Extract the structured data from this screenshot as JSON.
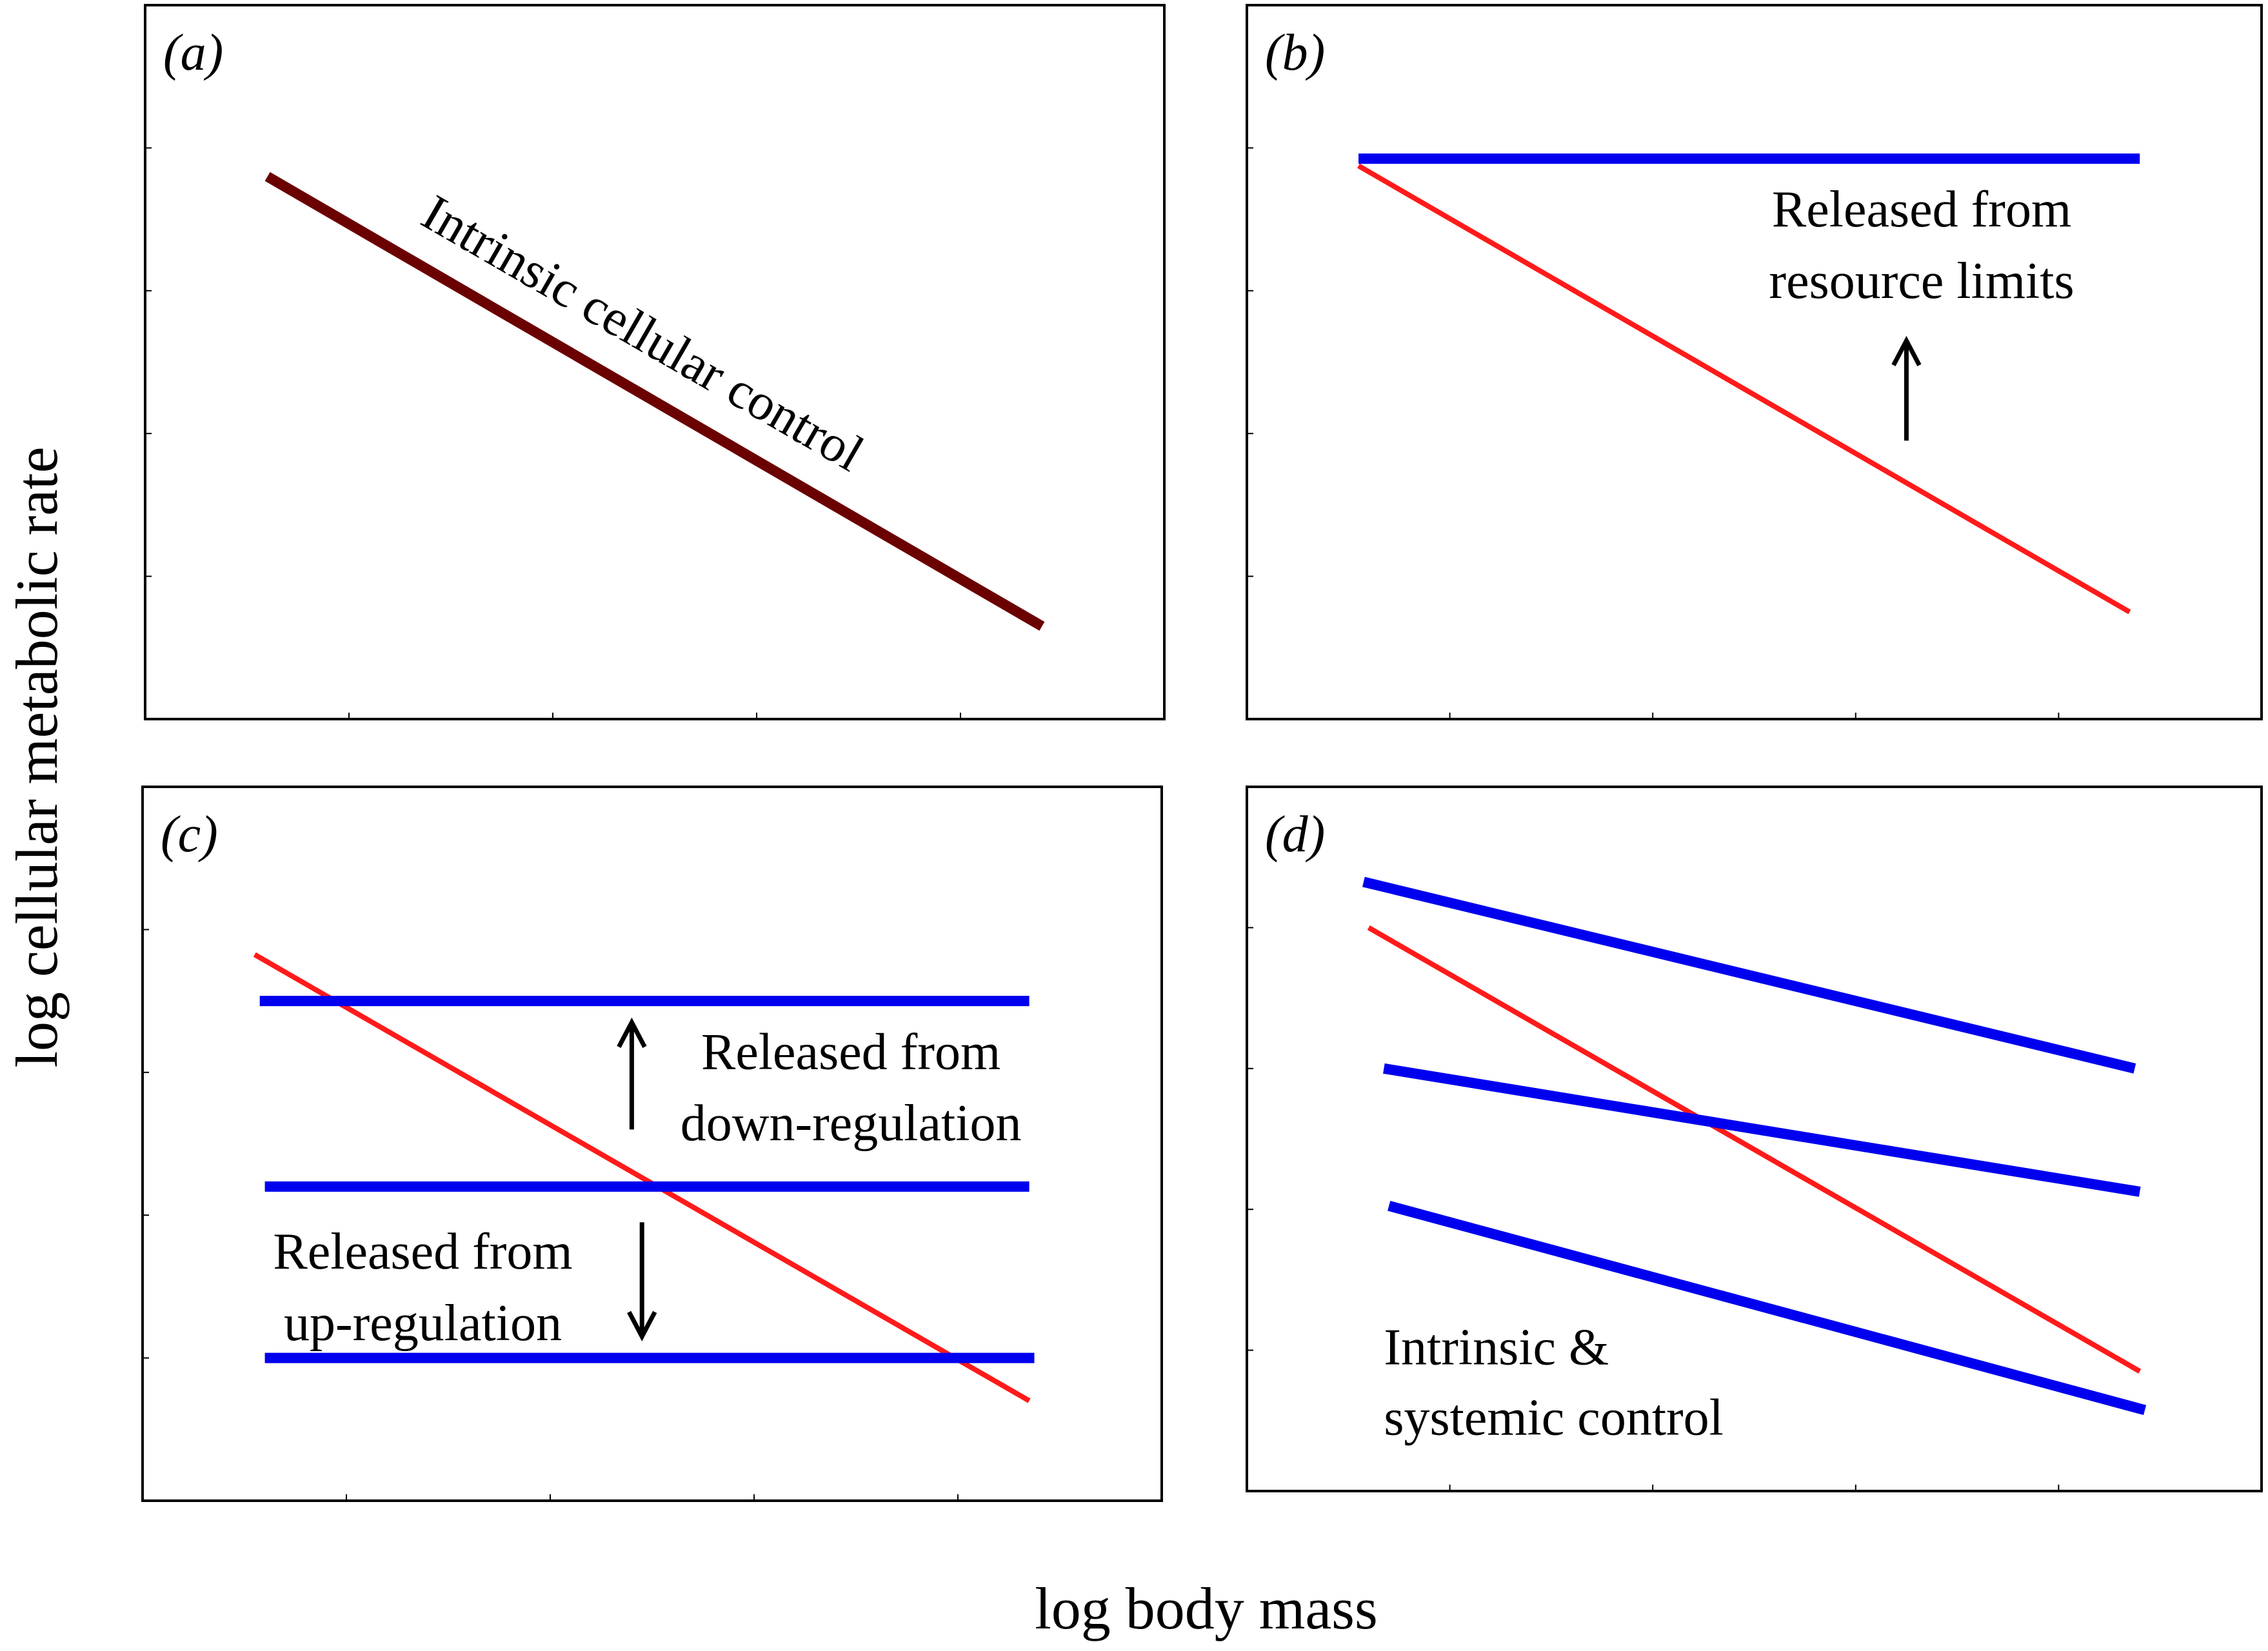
{
  "figure": {
    "y_axis_label": "log cellular metabolic rate",
    "x_axis_label": "log body mass"
  },
  "colors": {
    "intrinsic": "#6b0000",
    "red": "#ff1a1a",
    "blue": "#0000ee",
    "arrow": "#000000"
  },
  "chart_data": [
    {
      "type": "line",
      "panel": "(a)",
      "xlim": [
        0,
        1
      ],
      "ylim": [
        0,
        1
      ],
      "xlabel": "log body mass",
      "ylabel": "log cellular metabolic rate",
      "series": [
        {
          "name": "intrinsic",
          "x": [
            0.12,
            0.88
          ],
          "y": [
            0.76,
            0.13
          ],
          "width": 16
        }
      ],
      "annotations": [
        {
          "text": "Intrinsic cellular control",
          "x": 0.48,
          "y": 0.52,
          "rotate": 30
        }
      ],
      "arrows": []
    },
    {
      "type": "line",
      "panel": "(b)",
      "xlim": [
        0,
        1
      ],
      "ylim": [
        0,
        1
      ],
      "xlabel": "log body mass",
      "ylabel": "log cellular metabolic rate",
      "series": [
        {
          "name": "red",
          "x": [
            0.11,
            0.87
          ],
          "y": [
            0.775,
            0.15
          ],
          "width": 8
        },
        {
          "name": "blue",
          "x": [
            0.11,
            0.88
          ],
          "y": [
            0.785,
            0.785
          ],
          "width": 16
        }
      ],
      "annotations": [
        {
          "text": "Released from",
          "x": 0.665,
          "y": 0.69
        },
        {
          "text": "resource limits",
          "x": 0.665,
          "y": 0.59
        }
      ],
      "arrows": [
        {
          "direction": "up",
          "x": 0.65,
          "y_from": 0.39,
          "y_to": 0.53
        }
      ]
    },
    {
      "type": "line",
      "panel": "(c)",
      "xlim": [
        0,
        1
      ],
      "ylim": [
        0,
        1
      ],
      "xlabel": "log body mass",
      "ylabel": "log cellular metabolic rate",
      "series": [
        {
          "name": "red",
          "x": [
            0.11,
            0.87
          ],
          "y": [
            0.765,
            0.14
          ],
          "width": 8
        },
        {
          "name": "blue",
          "x": [
            0.115,
            0.87
          ],
          "y": [
            0.7,
            0.7
          ],
          "width": 16
        },
        {
          "name": "blue",
          "x": [
            0.12,
            0.87
          ],
          "y": [
            0.44,
            0.44
          ],
          "width": 16
        },
        {
          "name": "blue",
          "x": [
            0.12,
            0.875
          ],
          "y": [
            0.2,
            0.2
          ],
          "width": 16
        }
      ],
      "annotations": [
        {
          "text": "Released from",
          "x": 0.695,
          "y": 0.605
        },
        {
          "text": "down-regulation",
          "x": 0.695,
          "y": 0.505
        },
        {
          "text": "Released from",
          "x": 0.275,
          "y": 0.325
        },
        {
          "text": "up-regulation",
          "x": 0.275,
          "y": 0.225
        }
      ],
      "arrows": [
        {
          "direction": "up",
          "x": 0.48,
          "y_from": 0.52,
          "y_to": 0.67
        },
        {
          "direction": "down",
          "x": 0.49,
          "y_from": 0.39,
          "y_to": 0.23
        }
      ]
    },
    {
      "type": "line",
      "panel": "(d)",
      "xlim": [
        0,
        1
      ],
      "ylim": [
        0,
        1
      ],
      "xlabel": "log body mass",
      "ylabel": "log cellular metabolic rate",
      "series": [
        {
          "name": "red",
          "x": [
            0.12,
            0.88
          ],
          "y": [
            0.8,
            0.17
          ],
          "width": 8
        },
        {
          "name": "blue",
          "x": [
            0.115,
            0.875
          ],
          "y": [
            0.865,
            0.6
          ],
          "width": 16
        },
        {
          "name": "blue",
          "x": [
            0.135,
            0.88
          ],
          "y": [
            0.6,
            0.425
          ],
          "width": 16
        },
        {
          "name": "blue",
          "x": [
            0.14,
            0.885
          ],
          "y": [
            0.405,
            0.115
          ],
          "width": 16
        }
      ],
      "annotations": [
        {
          "text": "Intrinsic &",
          "x": 0.135,
          "y": 0.18,
          "anchor": "start"
        },
        {
          "text": "systemic control",
          "x": 0.135,
          "y": 0.08,
          "anchor": "start"
        }
      ],
      "arrows": []
    }
  ]
}
